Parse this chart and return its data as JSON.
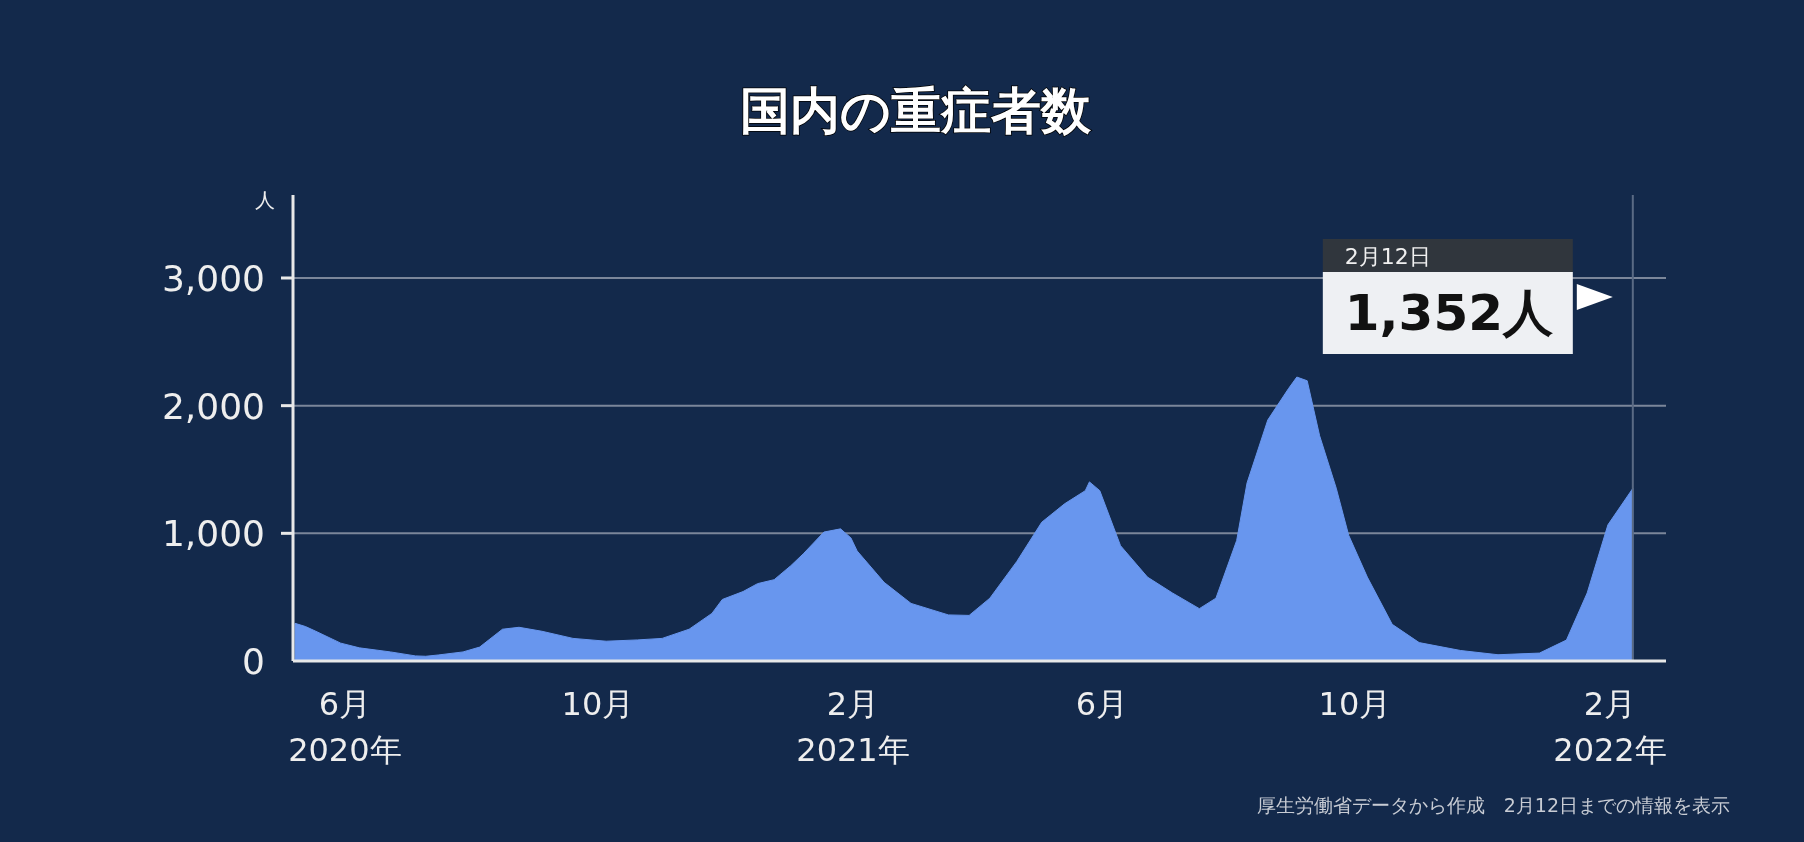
{
  "chart_data": {
    "type": "area",
    "title": "国内の重症者数",
    "ylabel": "人",
    "x": [
      "2020-05-08",
      "2020-05-13",
      "2020-05-18",
      "2020-05-30",
      "2020-06-08",
      "2020-06-23",
      "2020-07-05",
      "2020-07-10",
      "2020-07-16",
      "2020-07-28",
      "2020-08-05",
      "2020-08-16",
      "2020-08-24",
      "2020-09-04",
      "2020-09-19",
      "2020-10-05",
      "2020-10-20",
      "2020-11-01",
      "2020-11-14",
      "2020-11-25",
      "2020-11-30",
      "2020-12-10",
      "2020-12-17",
      "2020-12-25",
      "2021-01-02",
      "2021-01-08",
      "2021-01-18",
      "2021-01-26",
      "2021-01-31",
      "2021-02-03",
      "2021-02-16",
      "2021-03-01",
      "2021-03-19",
      "2021-03-29",
      "2021-04-08",
      "2021-04-21",
      "2021-05-03",
      "2021-05-14",
      "2021-05-24",
      "2021-05-26",
      "2021-05-31",
      "2021-06-10",
      "2021-06-23",
      "2021-07-05",
      "2021-07-18",
      "2021-07-26",
      "2021-08-05",
      "2021-08-10",
      "2021-08-20",
      "2021-08-30",
      "2021-09-03",
      "2021-09-08",
      "2021-09-14",
      "2021-09-22",
      "2021-09-28",
      "2021-10-07",
      "2021-10-19",
      "2021-11-01",
      "2021-11-21",
      "2021-12-09",
      "2021-12-29",
      "2022-01-11",
      "2022-01-21",
      "2022-01-31",
      "2022-02-12"
    ],
    "series": [
      {
        "color": "#6896ee",
        "values": [
          295,
          270,
          233,
          140,
          103,
          71,
          40,
          37,
          47,
          71,
          109,
          249,
          264,
          233,
          177,
          155,
          165,
          177,
          249,
          373,
          482,
          544,
          606,
          637,
          746,
          839,
          1010,
          1035,
          964,
          862,
          616,
          451,
          361,
          357,
          492,
          780,
          1087,
          1231,
          1334,
          1403,
          1334,
          903,
          657,
          533,
          410,
          492,
          944,
          1395,
          1888,
          2134,
          2224,
          2195,
          1764,
          1354,
          985,
          657,
          287,
          144,
          82,
          49,
          62,
          164,
          533,
          1067,
          1352
        ]
      }
    ],
    "xlim": [
      "2020-05-07",
      "2022-02-28"
    ],
    "xticks": [
      {
        "value": "2020-06-01",
        "label": "6月\n2020年"
      },
      {
        "value": "2020-10-01",
        "label": "10月"
      },
      {
        "value": "2021-02-01",
        "label": "2月\n2021年"
      },
      {
        "value": "2021-06-01",
        "label": "6月"
      },
      {
        "value": "2021-10-01",
        "label": "10月"
      },
      {
        "value": "2022-02-01",
        "label": "2月\n2022年"
      }
    ],
    "ylim": [
      0,
      3650
    ],
    "yticks": [
      0,
      {
        "value": 1000,
        "label": "1,000"
      },
      {
        "value": 2000,
        "label": "2,000"
      },
      {
        "value": 3000,
        "label": "3,000"
      }
    ],
    "grid": "y",
    "ref_lines": [
      {
        "axis": "x",
        "value": "2022-02-12",
        "color": "#5a6a84"
      }
    ],
    "annotations": [
      "2月12日",
      "1,352人",
      "厚生労働省データから作成　2月12日までの情報を表示"
    ]
  }
}
